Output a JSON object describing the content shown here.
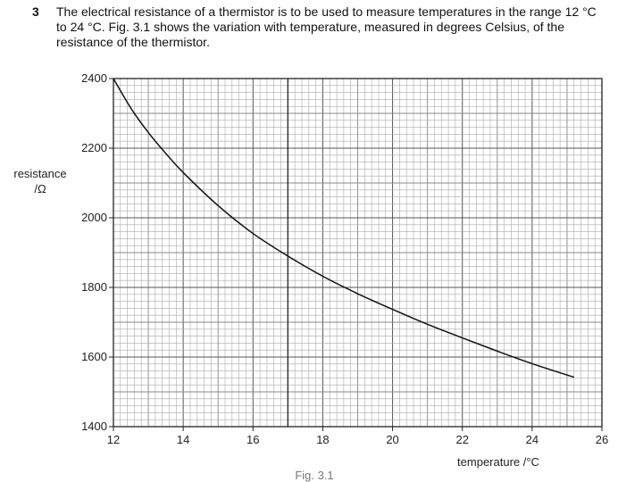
{
  "question": {
    "number": "3",
    "text": "The electrical resistance of a thermistor is to be used to measure temperatures in the range 12 °C to 24 °C. Fig. 3.1 shows the variation with temperature, measured in degrees Celsius, of the resistance of the thermistor."
  },
  "caption": "Fig. 3.1",
  "chart_data": {
    "type": "line",
    "title": "",
    "xlabel": "temperature /°C",
    "ylabel_lines": [
      "resistance",
      "/Ω"
    ],
    "xlim": [
      12,
      26
    ],
    "ylim": [
      1400,
      2400
    ],
    "xticks": [
      12,
      14,
      16,
      18,
      20,
      22,
      24,
      26
    ],
    "yticks": [
      1400,
      1600,
      1800,
      2000,
      2200,
      2400
    ],
    "grid": true,
    "grid_minor_x": 0.2,
    "grid_minor_y": 20,
    "marked_vertical_line_x": 17,
    "series": [
      {
        "x": [
          12,
          12.5,
          13,
          13.5,
          14,
          15,
          16,
          17,
          18,
          19,
          20,
          21,
          22,
          23,
          24,
          25.2
        ],
        "y": [
          2400,
          2315,
          2245,
          2185,
          2130,
          2035,
          1955,
          1890,
          1832,
          1782,
          1737,
          1694,
          1655,
          1617,
          1581,
          1542
        ]
      }
    ]
  }
}
